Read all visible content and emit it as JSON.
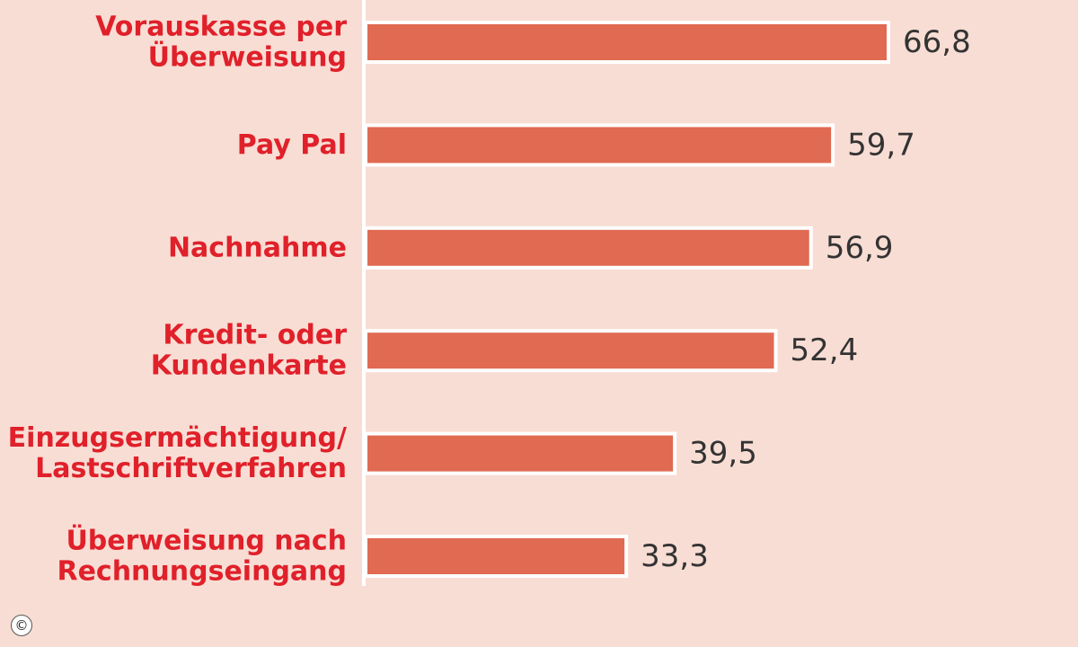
{
  "chart_data": {
    "type": "bar",
    "orientation": "horizontal",
    "categories": [
      [
        "Vorauskasse per",
        "Überweisung"
      ],
      [
        "Pay Pal"
      ],
      [
        "Nachnahme"
      ],
      [
        "Kredit- oder",
        "Kundenkarte"
      ],
      [
        "Einzugsermächtigung/",
        "Lastschriftverfahren"
      ],
      [
        "Überweisung nach",
        "Rechnungseingang"
      ]
    ],
    "values": [
      66.8,
      59.7,
      56.9,
      52.4,
      39.5,
      33.3
    ],
    "value_labels": [
      "66,8",
      "59,7",
      "56,9",
      "52,4",
      "39,5",
      "33,3"
    ],
    "xlim": [
      0,
      66.8
    ],
    "grid": false,
    "legend": "none"
  },
  "colors": {
    "background": "#f8ddd4",
    "bar": "#e06a52",
    "bar_outline": "#ffffff",
    "category_text": "#e0202a",
    "value_text": "#333333",
    "axis": "#ffffff"
  },
  "copyright_symbol": "©"
}
